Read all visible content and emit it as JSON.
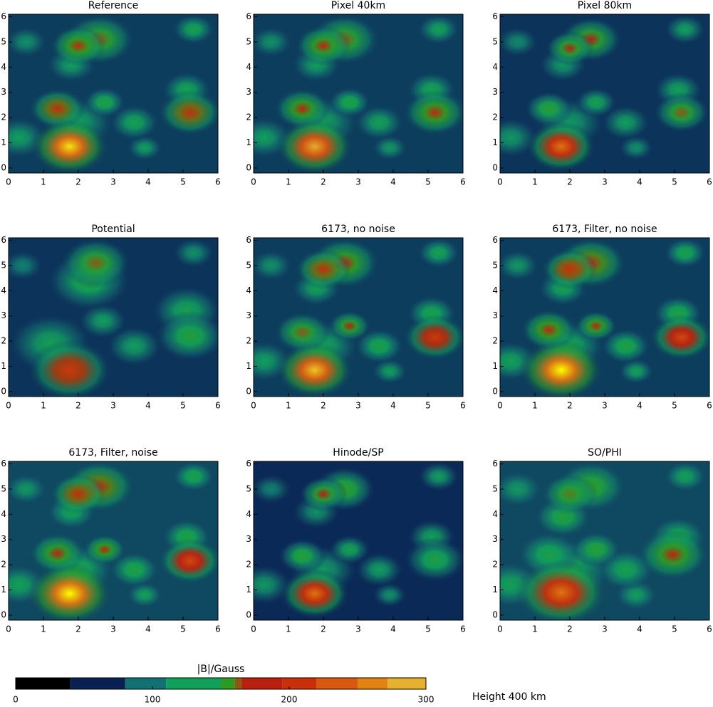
{
  "chart_data": [
    {
      "type": "heatmap",
      "title": "Reference",
      "xlim": [
        0,
        6
      ],
      "ylim": [
        -0.2,
        6.1
      ],
      "xticks": [
        0,
        1,
        2,
        3,
        4,
        5,
        6
      ],
      "yticks": [
        0,
        1,
        2,
        3,
        4,
        5,
        6
      ],
      "background": 55,
      "peaks": [
        [
          0.5,
          5.0,
          100,
          0.3
        ],
        [
          1.8,
          4.1,
          110,
          0.35
        ],
        [
          0.3,
          1.2,
          110,
          0.4
        ],
        [
          3.9,
          0.8,
          110,
          0.25
        ],
        [
          2.0,
          1.8,
          110,
          0.5
        ],
        [
          3.6,
          1.8,
          120,
          0.35
        ],
        [
          5.1,
          3.1,
          120,
          0.35
        ],
        [
          5.3,
          5.5,
          120,
          0.3
        ],
        [
          2.75,
          2.6,
          130,
          0.3
        ],
        [
          2.6,
          5.1,
          160,
          0.5
        ],
        [
          2.0,
          4.85,
          180,
          0.4
        ],
        [
          1.4,
          2.35,
          190,
          0.4
        ],
        [
          5.2,
          2.2,
          190,
          0.45
        ],
        [
          1.75,
          0.85,
          290,
          0.55
        ]
      ]
    },
    {
      "type": "heatmap",
      "title": "Pixel 40km",
      "xlim": [
        0,
        6
      ],
      "ylim": [
        -0.2,
        6.1
      ],
      "xticks": [
        0,
        1,
        2,
        3,
        4,
        5,
        6
      ],
      "yticks": [
        0,
        1,
        2,
        3,
        4,
        5,
        6
      ],
      "background": 55,
      "peaks": [
        [
          0.5,
          5.0,
          100,
          0.3
        ],
        [
          1.8,
          4.1,
          110,
          0.35
        ],
        [
          0.3,
          1.2,
          110,
          0.4
        ],
        [
          3.9,
          0.8,
          105,
          0.25
        ],
        [
          2.0,
          1.8,
          110,
          0.5
        ],
        [
          3.6,
          1.8,
          115,
          0.35
        ],
        [
          5.1,
          3.1,
          120,
          0.35
        ],
        [
          5.3,
          5.5,
          115,
          0.3
        ],
        [
          2.75,
          2.6,
          130,
          0.3
        ],
        [
          2.6,
          5.1,
          160,
          0.5
        ],
        [
          2.0,
          4.85,
          175,
          0.4
        ],
        [
          1.4,
          2.35,
          175,
          0.4
        ],
        [
          5.2,
          2.2,
          180,
          0.45
        ],
        [
          1.75,
          0.85,
          270,
          0.55
        ]
      ]
    },
    {
      "type": "heatmap",
      "title": "Pixel 80km",
      "xlim": [
        0,
        6
      ],
      "ylim": [
        -0.2,
        6.1
      ],
      "xticks": [
        0,
        1,
        2,
        3,
        4,
        5,
        6
      ],
      "yticks": [
        0,
        1,
        2,
        3,
        4,
        5,
        6
      ],
      "background": 50,
      "peaks": [
        [
          0.5,
          5.0,
          95,
          0.3
        ],
        [
          1.8,
          4.1,
          105,
          0.35
        ],
        [
          0.3,
          1.2,
          105,
          0.4
        ],
        [
          3.9,
          0.8,
          100,
          0.25
        ],
        [
          2.0,
          1.8,
          105,
          0.5
        ],
        [
          3.6,
          1.8,
          110,
          0.35
        ],
        [
          5.1,
          3.1,
          115,
          0.35
        ],
        [
          5.3,
          5.5,
          110,
          0.3
        ],
        [
          2.75,
          2.6,
          120,
          0.3
        ],
        [
          2.6,
          5.1,
          165,
          0.45
        ],
        [
          2.0,
          4.75,
          165,
          0.35
        ],
        [
          1.4,
          2.35,
          140,
          0.35
        ],
        [
          5.2,
          2.2,
          160,
          0.4
        ],
        [
          1.75,
          0.85,
          240,
          0.5
        ]
      ]
    },
    {
      "type": "heatmap",
      "title": "Potential",
      "xlim": [
        0,
        6
      ],
      "ylim": [
        -0.2,
        6.1
      ],
      "xticks": [
        0,
        1,
        2,
        3,
        4,
        5,
        6
      ],
      "yticks": [
        0,
        1,
        2,
        3,
        4,
        5,
        6
      ],
      "background": 50,
      "peaks": [
        [
          0.4,
          5.0,
          90,
          0.3
        ],
        [
          5.3,
          5.5,
          100,
          0.3
        ],
        [
          2.7,
          2.8,
          110,
          0.35
        ],
        [
          3.6,
          1.8,
          110,
          0.4
        ],
        [
          5.1,
          3.2,
          120,
          0.5
        ],
        [
          1.2,
          1.9,
          115,
          0.6
        ],
        [
          5.2,
          2.2,
          135,
          0.5
        ],
        [
          2.3,
          4.4,
          130,
          0.6
        ],
        [
          2.5,
          5.1,
          160,
          0.5
        ],
        [
          1.75,
          0.85,
          200,
          0.6
        ]
      ]
    },
    {
      "type": "heatmap",
      "title": "6173, no noise",
      "xlim": [
        0,
        6
      ],
      "ylim": [
        -0.2,
        6.1
      ],
      "xticks": [
        0,
        1,
        2,
        3,
        4,
        5,
        6
      ],
      "yticks": [
        0,
        1,
        2,
        3,
        4,
        5,
        6
      ],
      "background": 55,
      "peaks": [
        [
          0.5,
          5.0,
          100,
          0.3
        ],
        [
          1.8,
          4.1,
          115,
          0.35
        ],
        [
          0.3,
          1.2,
          110,
          0.4
        ],
        [
          3.9,
          0.8,
          110,
          0.25
        ],
        [
          2.0,
          1.8,
          115,
          0.5
        ],
        [
          3.6,
          1.8,
          125,
          0.35
        ],
        [
          5.1,
          3.1,
          125,
          0.35
        ],
        [
          5.3,
          5.5,
          120,
          0.3
        ],
        [
          2.75,
          2.6,
          165,
          0.3
        ],
        [
          2.6,
          5.1,
          175,
          0.5
        ],
        [
          2.0,
          4.85,
          190,
          0.4
        ],
        [
          1.4,
          2.35,
          160,
          0.4
        ],
        [
          5.2,
          2.15,
          200,
          0.45
        ],
        [
          1.75,
          0.85,
          280,
          0.55
        ]
      ]
    },
    {
      "type": "heatmap",
      "title": "6173, Filter, no noise",
      "xlim": [
        0,
        6
      ],
      "ylim": [
        -0.2,
        6.1
      ],
      "xticks": [
        0,
        1,
        2,
        3,
        4,
        5,
        6
      ],
      "yticks": [
        0,
        1,
        2,
        3,
        4,
        5,
        6
      ],
      "background": 55,
      "peaks": [
        [
          0.5,
          5.0,
          105,
          0.3
        ],
        [
          1.8,
          4.1,
          120,
          0.35
        ],
        [
          0.3,
          1.2,
          115,
          0.4
        ],
        [
          3.9,
          0.8,
          115,
          0.25
        ],
        [
          2.0,
          1.8,
          120,
          0.5
        ],
        [
          3.6,
          1.8,
          130,
          0.35
        ],
        [
          5.1,
          3.1,
          130,
          0.35
        ],
        [
          5.3,
          5.5,
          125,
          0.3
        ],
        [
          2.75,
          2.6,
          175,
          0.3
        ],
        [
          2.6,
          5.1,
          185,
          0.5
        ],
        [
          2.0,
          4.85,
          195,
          0.4
        ],
        [
          1.4,
          2.45,
          180,
          0.4
        ],
        [
          5.2,
          2.15,
          210,
          0.45
        ],
        [
          1.75,
          0.85,
          300,
          0.6
        ]
      ]
    },
    {
      "type": "heatmap",
      "title": "6173, Filter, noise",
      "xlim": [
        0,
        6
      ],
      "ylim": [
        -0.2,
        6.1
      ],
      "xticks": [
        0,
        1,
        2,
        3,
        4,
        5,
        6
      ],
      "yticks": [
        0,
        1,
        2,
        3,
        4,
        5,
        6
      ],
      "background": 60,
      "peaks": [
        [
          0.5,
          5.0,
          105,
          0.3
        ],
        [
          1.8,
          4.1,
          120,
          0.35
        ],
        [
          0.3,
          1.2,
          115,
          0.4
        ],
        [
          3.9,
          0.8,
          115,
          0.25
        ],
        [
          2.0,
          1.8,
          125,
          0.5
        ],
        [
          3.6,
          1.8,
          130,
          0.35
        ],
        [
          5.1,
          3.1,
          130,
          0.35
        ],
        [
          5.3,
          5.5,
          125,
          0.3
        ],
        [
          2.75,
          2.6,
          175,
          0.3
        ],
        [
          2.6,
          5.1,
          185,
          0.5
        ],
        [
          2.0,
          4.8,
          190,
          0.4
        ],
        [
          1.4,
          2.45,
          170,
          0.4
        ],
        [
          5.2,
          2.15,
          210,
          0.45
        ],
        [
          1.75,
          0.85,
          300,
          0.6
        ]
      ]
    },
    {
      "type": "heatmap",
      "title": "Hinode/SP",
      "xlim": [
        0,
        6
      ],
      "ylim": [
        -0.2,
        6.1
      ],
      "xticks": [
        0,
        1,
        2,
        3,
        4,
        5,
        6
      ],
      "yticks": [
        0,
        1,
        2,
        3,
        4,
        5,
        6
      ],
      "background": 45,
      "peaks": [
        [
          0.5,
          5.0,
          90,
          0.3
        ],
        [
          1.8,
          4.1,
          100,
          0.35
        ],
        [
          0.3,
          1.2,
          105,
          0.4
        ],
        [
          3.9,
          0.8,
          100,
          0.25
        ],
        [
          2.0,
          1.8,
          105,
          0.5
        ],
        [
          3.6,
          1.8,
          110,
          0.35
        ],
        [
          5.1,
          3.1,
          115,
          0.35
        ],
        [
          5.3,
          5.5,
          110,
          0.3
        ],
        [
          2.75,
          2.6,
          120,
          0.3
        ],
        [
          2.6,
          5.0,
          150,
          0.45
        ],
        [
          2.0,
          4.8,
          165,
          0.35
        ],
        [
          1.4,
          2.35,
          140,
          0.35
        ],
        [
          5.2,
          2.2,
          130,
          0.45
        ],
        [
          1.75,
          0.85,
          240,
          0.5
        ]
      ]
    },
    {
      "type": "heatmap",
      "title": "SO/PHI",
      "xlim": [
        0,
        6
      ],
      "ylim": [
        -0.2,
        6.1
      ],
      "xticks": [
        0,
        1,
        2,
        3,
        4,
        5,
        6
      ],
      "yticks": [
        0,
        1,
        2,
        3,
        4,
        5,
        6
      ],
      "background": 60,
      "peaks": [
        [
          0.5,
          5.0,
          105,
          0.35
        ],
        [
          1.8,
          3.9,
          135,
          0.4
        ],
        [
          0.3,
          1.2,
          115,
          0.45
        ],
        [
          3.9,
          0.8,
          110,
          0.3
        ],
        [
          2.0,
          1.8,
          120,
          0.6
        ],
        [
          3.6,
          1.8,
          120,
          0.4
        ],
        [
          5.1,
          3.1,
          125,
          0.4
        ],
        [
          5.3,
          5.5,
          115,
          0.3
        ],
        [
          2.75,
          2.6,
          140,
          0.35
        ],
        [
          2.6,
          5.1,
          150,
          0.5
        ],
        [
          2.0,
          4.8,
          155,
          0.4
        ],
        [
          1.4,
          2.4,
          125,
          0.45
        ],
        [
          4.95,
          2.4,
          175,
          0.5
        ],
        [
          1.75,
          0.9,
          240,
          0.65
        ]
      ]
    },
    {
      "type": "colorbar",
      "title": "|B|/Gauss",
      "note": "Height 400 km",
      "xlim": [
        0,
        300
      ],
      "xticks": [
        0,
        100,
        200,
        300
      ],
      "colorscale": [
        [
          0,
          "#000000"
        ],
        [
          40,
          "#0a1f52"
        ],
        [
          80,
          "#137070"
        ],
        [
          110,
          "#11a05a"
        ],
        [
          150,
          "#2f9a22"
        ],
        [
          160,
          "#8a5a10"
        ],
        [
          165,
          "#b82010"
        ],
        [
          195,
          "#c8300a"
        ],
        [
          220,
          "#d85810"
        ],
        [
          250,
          "#e28212"
        ],
        [
          272,
          "#e8b030"
        ],
        [
          300,
          "#ffff00"
        ]
      ]
    }
  ]
}
